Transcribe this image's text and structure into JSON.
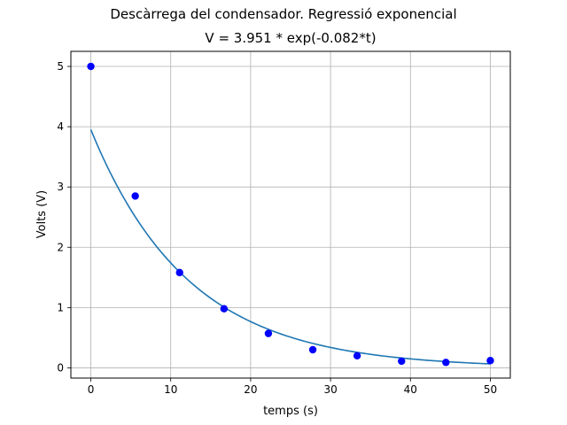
{
  "chart_data": {
    "type": "scatter",
    "suptitle": "Descàrrega del condensador. Regressió exponencial",
    "title": "V = 3.951 * exp(-0.082*t)",
    "xlabel": "temps (s)",
    "ylabel": "Volts (V)",
    "xlim": [
      -2.5,
      52.5
    ],
    "ylim": [
      -0.17,
      5.25
    ],
    "xticks": [
      0,
      10,
      20,
      30,
      40,
      50
    ],
    "yticks": [
      0,
      1,
      2,
      3,
      4,
      5
    ],
    "grid": true,
    "series": [
      {
        "kind": "points",
        "color": "#0000ff",
        "x": [
          0,
          5.56,
          11.11,
          16.67,
          22.22,
          27.78,
          33.33,
          38.89,
          44.44,
          50
        ],
        "y": [
          5.0,
          2.85,
          1.58,
          0.98,
          0.57,
          0.3,
          0.2,
          0.11,
          0.09,
          0.12
        ]
      },
      {
        "kind": "fit",
        "color": "#1f77b4",
        "amplitude": 3.951,
        "rate": -0.082,
        "x_range": [
          0,
          50
        ]
      }
    ]
  }
}
